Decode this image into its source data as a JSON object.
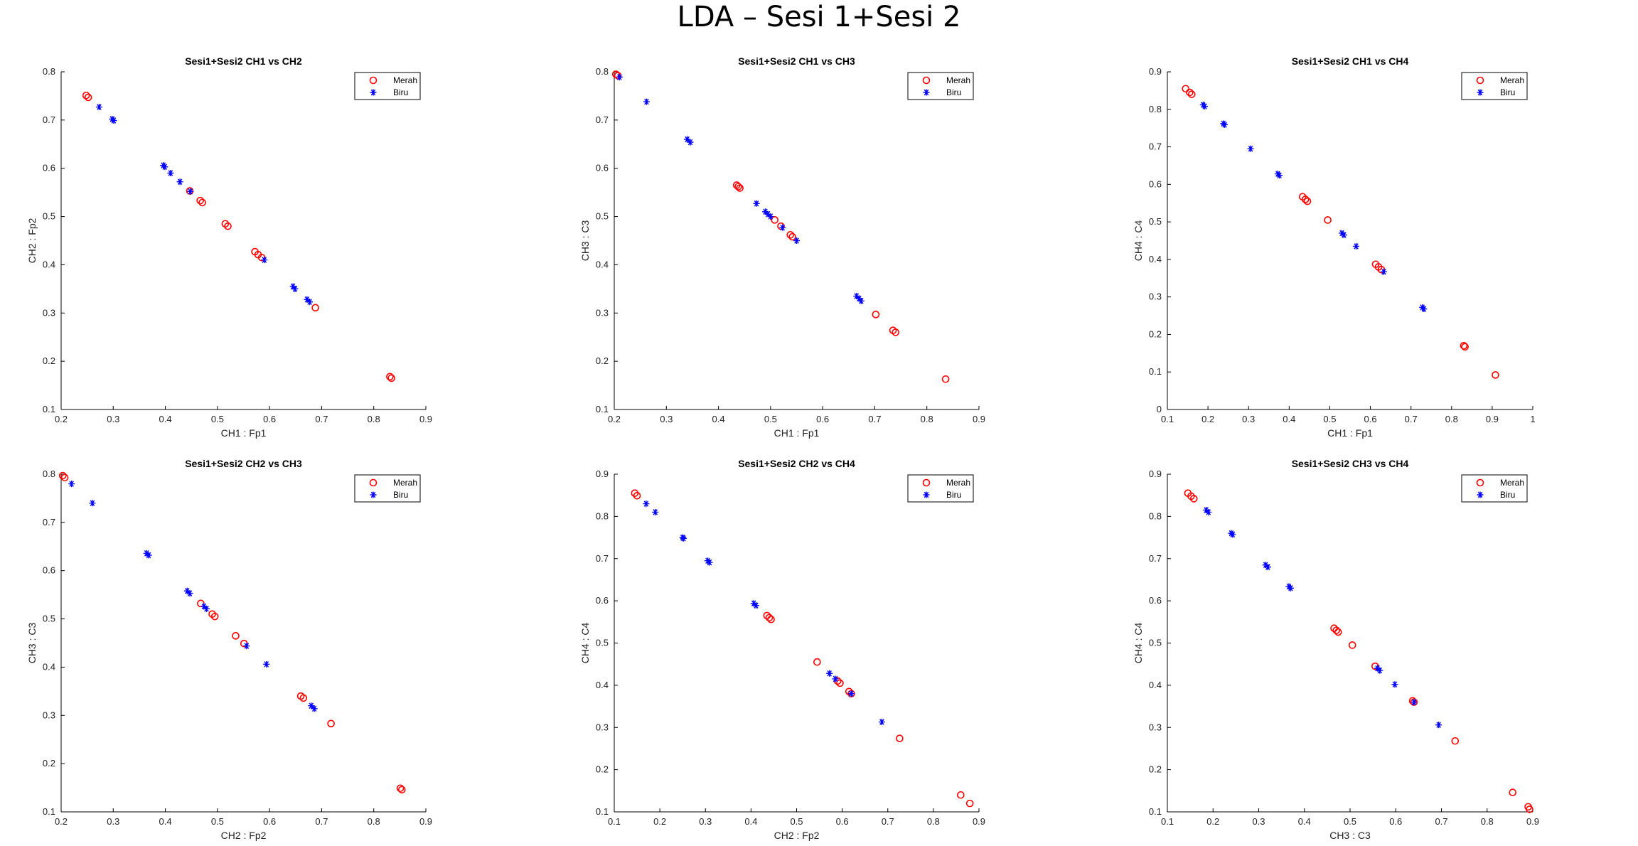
{
  "figure_title": "LDA – Sesi 1+Sesi 2",
  "colors": {
    "merah": "#ff0000",
    "biru": "#0000ff",
    "axes": "#000000"
  },
  "chart_data": [
    {
      "type": "scatter",
      "title": "Sesi1+Sesi2 CH1 vs CH2",
      "xlabel": "CH1 : Fp1",
      "ylabel": "CH2 : Fp2",
      "xlim": [
        0.2,
        0.9
      ],
      "ylim": [
        0.1,
        0.8
      ],
      "xticks": [
        "0.2",
        "0.3",
        "0.4",
        "0.5",
        "0.6",
        "0.7",
        "0.8",
        "0.9"
      ],
      "yticks": [
        "0.1",
        "0.2",
        "0.3",
        "0.4",
        "0.5",
        "0.6",
        "0.7",
        "0.8"
      ],
      "legend_position": "top-right",
      "grid": false,
      "series": [
        {
          "name": "Merah",
          "marker": "circle",
          "color": "#ff0000",
          "x": [
            0.248,
            0.252,
            0.447,
            0.467,
            0.471,
            0.515,
            0.52,
            0.572,
            0.578,
            0.585,
            0.688,
            0.831,
            0.834
          ],
          "y": [
            0.751,
            0.747,
            0.553,
            0.533,
            0.529,
            0.485,
            0.48,
            0.427,
            0.421,
            0.415,
            0.311,
            0.168,
            0.165
          ]
        },
        {
          "name": "Biru",
          "marker": "asterisk",
          "color": "#0000ff",
          "x": [
            0.273,
            0.298,
            0.301,
            0.396,
            0.399,
            0.41,
            0.428,
            0.448,
            0.59,
            0.645,
            0.649,
            0.672,
            0.677
          ],
          "y": [
            0.727,
            0.702,
            0.699,
            0.606,
            0.603,
            0.59,
            0.572,
            0.552,
            0.41,
            0.355,
            0.35,
            0.328,
            0.323
          ]
        }
      ]
    },
    {
      "type": "scatter",
      "title": "Sesi1+Sesi2 CH1 vs CH3",
      "xlabel": "CH1 : Fp1",
      "ylabel": "CH3 : C3",
      "xlim": [
        0.2,
        0.9
      ],
      "ylim": [
        0.1,
        0.8
      ],
      "xticks": [
        "0.2",
        "0.3",
        "0.4",
        "0.5",
        "0.6",
        "0.7",
        "0.8",
        "0.9"
      ],
      "yticks": [
        "0.1",
        "0.2",
        "0.3",
        "0.4",
        "0.5",
        "0.6",
        "0.7",
        "0.8"
      ],
      "legend_position": "top-right",
      "grid": false,
      "series": [
        {
          "name": "Merah",
          "marker": "circle",
          "color": "#ff0000",
          "x": [
            0.203,
            0.207,
            0.435,
            0.438,
            0.441,
            0.508,
            0.52,
            0.538,
            0.542,
            0.702,
            0.735,
            0.74,
            0.836
          ],
          "y": [
            0.795,
            0.792,
            0.565,
            0.562,
            0.559,
            0.493,
            0.48,
            0.462,
            0.458,
            0.297,
            0.264,
            0.26,
            0.163
          ]
        },
        {
          "name": "Biru",
          "marker": "asterisk",
          "color": "#0000ff",
          "x": [
            0.21,
            0.262,
            0.34,
            0.346,
            0.473,
            0.49,
            0.495,
            0.5,
            0.523,
            0.55,
            0.665,
            0.67,
            0.674
          ],
          "y": [
            0.789,
            0.738,
            0.66,
            0.654,
            0.527,
            0.51,
            0.505,
            0.5,
            0.477,
            0.45,
            0.335,
            0.33,
            0.325
          ]
        }
      ]
    },
    {
      "type": "scatter",
      "title": "Sesi1+Sesi2 CH1 vs CH4",
      "xlabel": "CH1 : Fp1",
      "ylabel": "CH4 : C4",
      "xlim": [
        0.1,
        1.0
      ],
      "ylim": [
        0.0,
        0.9
      ],
      "xticks": [
        "0.1",
        "0.2",
        "0.3",
        "0.4",
        "0.5",
        "0.6",
        "0.7",
        "0.8",
        "0.9",
        "1"
      ],
      "yticks": [
        "0",
        "0.1",
        "0.2",
        "0.3",
        "0.4",
        "0.5",
        "0.6",
        "0.7",
        "0.8",
        "0.9"
      ],
      "legend_position": "top-right",
      "grid": false,
      "series": [
        {
          "name": "Merah",
          "marker": "circle",
          "color": "#ff0000",
          "x": [
            0.145,
            0.155,
            0.16,
            0.433,
            0.44,
            0.445,
            0.495,
            0.613,
            0.62,
            0.627,
            0.83,
            0.833,
            0.908
          ],
          "y": [
            0.855,
            0.845,
            0.84,
            0.567,
            0.56,
            0.555,
            0.505,
            0.387,
            0.38,
            0.373,
            0.17,
            0.167,
            0.092
          ]
        },
        {
          "name": "Biru",
          "marker": "asterisk",
          "color": "#0000ff",
          "x": [
            0.188,
            0.192,
            0.238,
            0.241,
            0.305,
            0.372,
            0.376,
            0.53,
            0.535,
            0.565,
            0.633,
            0.728,
            0.732
          ],
          "y": [
            0.812,
            0.808,
            0.762,
            0.759,
            0.695,
            0.628,
            0.624,
            0.47,
            0.465,
            0.435,
            0.367,
            0.272,
            0.268
          ]
        }
      ]
    },
    {
      "type": "scatter",
      "title": "Sesi1+Sesi2 CH2 vs CH3",
      "xlabel": "CH2 : Fp2",
      "ylabel": "CH3 : C3",
      "xlim": [
        0.2,
        0.9
      ],
      "ylim": [
        0.1,
        0.8
      ],
      "xticks": [
        "0.2",
        "0.3",
        "0.4",
        "0.5",
        "0.6",
        "0.7",
        "0.8",
        "0.9"
      ],
      "yticks": [
        "0.1",
        "0.2",
        "0.3",
        "0.4",
        "0.5",
        "0.6",
        "0.7",
        "0.8"
      ],
      "legend_position": "top-right",
      "grid": false,
      "series": [
        {
          "name": "Merah",
          "marker": "circle",
          "color": "#ff0000",
          "x": [
            0.203,
            0.207,
            0.468,
            0.49,
            0.495,
            0.535,
            0.551,
            0.66,
            0.665,
            0.718,
            0.851,
            0.854
          ],
          "y": [
            0.797,
            0.793,
            0.532,
            0.51,
            0.505,
            0.465,
            0.449,
            0.34,
            0.336,
            0.283,
            0.149,
            0.146
          ]
        },
        {
          "name": "Biru",
          "marker": "asterisk",
          "color": "#0000ff",
          "x": [
            0.22,
            0.26,
            0.364,
            0.368,
            0.442,
            0.447,
            0.474,
            0.479,
            0.556,
            0.594,
            0.68,
            0.686
          ],
          "y": [
            0.78,
            0.74,
            0.636,
            0.632,
            0.558,
            0.553,
            0.526,
            0.521,
            0.444,
            0.406,
            0.32,
            0.314
          ]
        }
      ]
    },
    {
      "type": "scatter",
      "title": "Sesi1+Sesi2 CH2 vs CH4",
      "xlabel": "CH2 : Fp2",
      "ylabel": "CH4 : C4",
      "xlim": [
        0.1,
        0.9
      ],
      "ylim": [
        0.1,
        0.9
      ],
      "xticks": [
        "0.1",
        "0.2",
        "0.3",
        "0.4",
        "0.5",
        "0.6",
        "0.7",
        "0.8",
        "0.9"
      ],
      "yticks": [
        "0.1",
        "0.2",
        "0.3",
        "0.4",
        "0.5",
        "0.6",
        "0.7",
        "0.8",
        "0.9"
      ],
      "legend_position": "top-right",
      "grid": false,
      "series": [
        {
          "name": "Merah",
          "marker": "circle",
          "color": "#ff0000",
          "x": [
            0.145,
            0.15,
            0.435,
            0.44,
            0.444,
            0.545,
            0.59,
            0.595,
            0.615,
            0.62,
            0.726,
            0.86,
            0.88
          ],
          "y": [
            0.855,
            0.849,
            0.565,
            0.56,
            0.556,
            0.455,
            0.41,
            0.405,
            0.385,
            0.38,
            0.274,
            0.14,
            0.12
          ]
        },
        {
          "name": "Biru",
          "marker": "asterisk",
          "color": "#0000ff",
          "x": [
            0.17,
            0.19,
            0.25,
            0.252,
            0.305,
            0.309,
            0.406,
            0.411,
            0.572,
            0.585,
            0.62,
            0.687
          ],
          "y": [
            0.83,
            0.81,
            0.75,
            0.748,
            0.695,
            0.691,
            0.594,
            0.589,
            0.428,
            0.415,
            0.38,
            0.313
          ]
        }
      ]
    },
    {
      "type": "scatter",
      "title": "Sesi1+Sesi2 CH3 vs CH4",
      "xlabel": "CH3 : C3",
      "ylabel": "CH4 : C4",
      "xlim": [
        0.1,
        0.9
      ],
      "ylim": [
        0.1,
        0.9
      ],
      "xticks": [
        "0.1",
        "0.2",
        "0.3",
        "0.4",
        "0.5",
        "0.6",
        "0.7",
        "0.8",
        "0.9"
      ],
      "yticks": [
        "0.1",
        "0.2",
        "0.3",
        "0.4",
        "0.5",
        "0.6",
        "0.7",
        "0.8",
        "0.9"
      ],
      "legend_position": "top-right",
      "grid": false,
      "series": [
        {
          "name": "Merah",
          "marker": "circle",
          "color": "#ff0000",
          "x": [
            0.145,
            0.152,
            0.158,
            0.465,
            0.47,
            0.474,
            0.505,
            0.555,
            0.637,
            0.64,
            0.73,
            0.856,
            0.89,
            0.893
          ],
          "y": [
            0.855,
            0.848,
            0.842,
            0.535,
            0.53,
            0.526,
            0.495,
            0.445,
            0.363,
            0.36,
            0.268,
            0.146,
            0.112,
            0.106
          ]
        },
        {
          "name": "Biru",
          "marker": "asterisk",
          "color": "#0000ff",
          "x": [
            0.185,
            0.19,
            0.24,
            0.243,
            0.315,
            0.32,
            0.366,
            0.37,
            0.56,
            0.565,
            0.598,
            0.64,
            0.694
          ],
          "y": [
            0.815,
            0.81,
            0.76,
            0.757,
            0.685,
            0.68,
            0.634,
            0.63,
            0.44,
            0.435,
            0.402,
            0.36,
            0.306
          ]
        }
      ]
    }
  ]
}
